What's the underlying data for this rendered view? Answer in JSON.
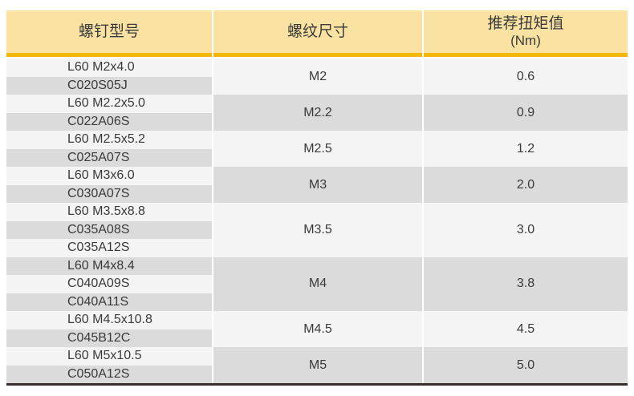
{
  "colors": {
    "header_bg": "#fae3a2",
    "accent_gold": "#f3b70a",
    "row_light": "#f4f4f4",
    "row_gray": "#dbdbdb",
    "text": "#3a3a3a",
    "bottom_border": "#372f2d",
    "separator": "#ffffff"
  },
  "table": {
    "headers": [
      {
        "label": "螺钉型号"
      },
      {
        "label": "螺纹尺寸"
      },
      {
        "label": "推荐扭矩值",
        "sublabel": "(Nm)"
      }
    ],
    "groups": [
      {
        "models": [
          "L60 M2x4.0",
          "C020S05J"
        ],
        "thread_size": "M2",
        "torque": "0.6"
      },
      {
        "models": [
          "L60 M2.2x5.0",
          "C022A06S"
        ],
        "thread_size": "M2.2",
        "torque": "0.9"
      },
      {
        "models": [
          "L60 M2.5x5.2",
          "C025A07S"
        ],
        "thread_size": "M2.5",
        "torque": "1.2"
      },
      {
        "models": [
          "L60 M3x6.0",
          "C030A07S"
        ],
        "thread_size": "M3",
        "torque": "2.0"
      },
      {
        "models": [
          "L60 M3.5x8.8",
          "C035A08S",
          "C035A12S"
        ],
        "thread_size": "M3.5",
        "torque": "3.0"
      },
      {
        "models": [
          "L60 M4x8.4",
          "C040A09S",
          "C040A11S"
        ],
        "thread_size": "M4",
        "torque": "3.8"
      },
      {
        "models": [
          "L60 M4.5x10.8",
          "C045B12C"
        ],
        "thread_size": "M4.5",
        "torque": "4.5"
      },
      {
        "models": [
          "L60 M5x10.5",
          "C050A12S"
        ],
        "thread_size": "M5",
        "torque": "5.0"
      }
    ]
  },
  "chart_data": {
    "type": "table",
    "columns": [
      "螺钉型号",
      "螺纹尺寸",
      "推荐扭矩值 (Nm)"
    ],
    "rows": [
      [
        "L60 M2x4.0 / C020S05J",
        "M2",
        "0.6"
      ],
      [
        "L60 M2.2x5.0 / C022A06S",
        "M2.2",
        "0.9"
      ],
      [
        "L60 M2.5x5.2 / C025A07S",
        "M2.5",
        "1.2"
      ],
      [
        "L60 M3x6.0 / C030A07S",
        "M3",
        "2.0"
      ],
      [
        "L60 M3.5x8.8 / C035A08S / C035A12S",
        "M3.5",
        "3.0"
      ],
      [
        "L60 M4x8.4 / C040A09S / C040A11S",
        "M4",
        "3.8"
      ],
      [
        "L60 M4.5x10.8 / C045B12C",
        "M4.5",
        "4.5"
      ],
      [
        "L60 M5x10.5 / C050A12S",
        "M5",
        "5.0"
      ]
    ]
  }
}
